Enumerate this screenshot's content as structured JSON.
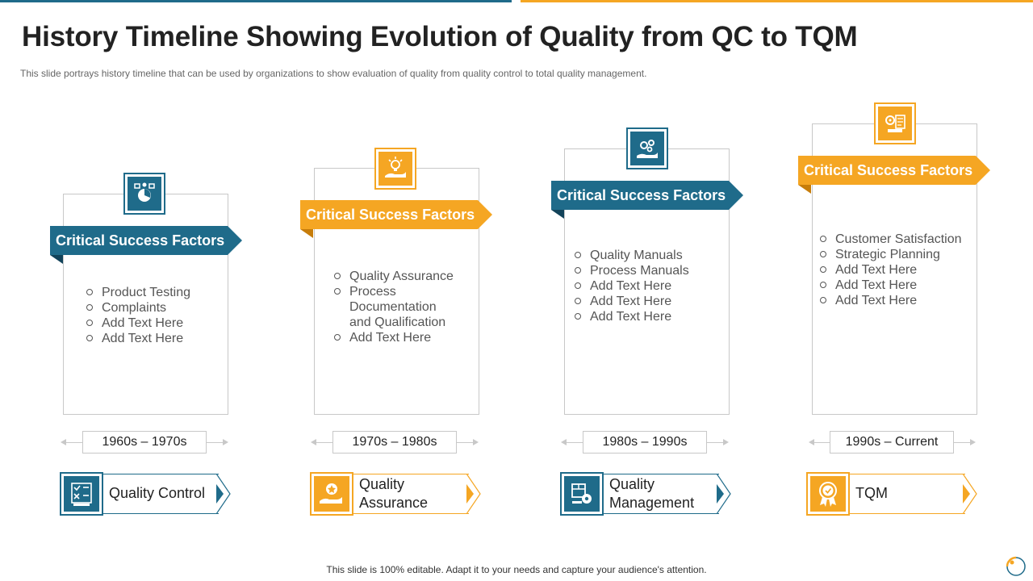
{
  "title": "History Timeline Showing Evolution of Quality from QC to TQM",
  "subtitle": "This slide portrays history timeline that can be used by organizations to show evaluation  of quality from  quality control to total quality management.",
  "colors": {
    "teal": "#1f6b8a",
    "orange": "#f5a623",
    "teal_dark": "#12435a",
    "orange_dark": "#c77d0a"
  },
  "stages": [
    {
      "banner": "Critical Success Factors",
      "color": "teal",
      "icon": "product-testing-icon",
      "bullets": [
        "Product Testing",
        "Complaints",
        "Add Text Here",
        "Add Text Here"
      ],
      "era": "1960s – 1970s",
      "label": "Quality Control",
      "label_icon": "quality-control-icon"
    },
    {
      "banner": "Critical Success Factors",
      "color": "orange",
      "icon": "hand-lightbulb-icon",
      "bullets": [
        "Quality Assurance",
        "Process Documentation and Qualification",
        "Add Text Here"
      ],
      "era": "1970s – 1980s",
      "label": "Quality Assurance",
      "label_icon": "hand-badge-icon"
    },
    {
      "banner": "Critical Success Factors",
      "color": "teal",
      "icon": "hand-gears-icon",
      "bullets": [
        "Quality Manuals",
        "Process Manuals",
        "Add Text Here",
        "Add Text Here",
        "Add Text Here"
      ],
      "era": "1980s – 1990s",
      "label": "Quality Management",
      "label_icon": "box-gear-icon"
    },
    {
      "banner": "Critical Success Factors",
      "color": "orange",
      "icon": "gear-document-icon",
      "bullets": [
        "Customer Satisfaction",
        "Strategic Planning",
        "Add Text Here",
        "Add Text Here",
        "Add Text Here"
      ],
      "era": "1990s – Current",
      "label": "TQM",
      "label_icon": "rosette-badge-icon"
    }
  ],
  "footer": "This slide is 100% editable. Adapt it to your needs and capture your audience's attention."
}
